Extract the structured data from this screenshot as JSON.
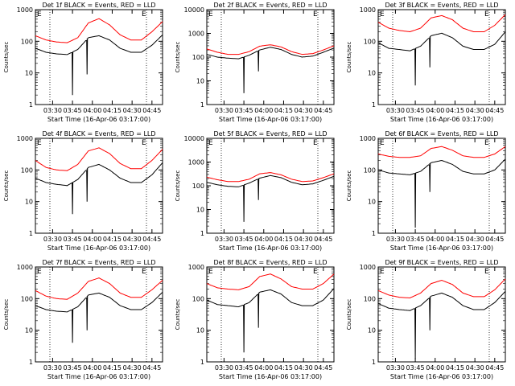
{
  "shared": {
    "ylabel": "Counts/sec",
    "xlabel": "Start Time (16-Apr-06 03:17:00)",
    "x_ticks": [
      "03:30",
      "03:45",
      "04:00",
      "04:15",
      "04:30",
      "04:45"
    ],
    "y_ticks": [
      "1",
      "10",
      "100",
      "1000"
    ],
    "corner_marks": [
      "E",
      "E"
    ],
    "colors": {
      "events": "#000000",
      "lld": "#ff0000",
      "axes": "#000000"
    }
  },
  "chart_data": [
    {
      "type": "line",
      "title": "Det 1f BLACK = Events, RED = LLD",
      "x": [
        "03:17",
        "03:25",
        "03:33",
        "03:41",
        "03:49",
        "03:57",
        "04:05",
        "04:13",
        "04:21",
        "04:29",
        "04:37",
        "04:45",
        "04:53"
      ],
      "series": [
        {
          "name": "LLD",
          "values": [
            150,
            110,
            95,
            90,
            130,
            380,
            520,
            330,
            160,
            110,
            110,
            200,
            420
          ]
        },
        {
          "name": "Events",
          "values": [
            60,
            45,
            40,
            38,
            55,
            130,
            150,
            110,
            60,
            45,
            45,
            75,
            160
          ]
        }
      ],
      "dips": [
        {
          "x": "03:45",
          "series": "Events",
          "value": 2
        },
        {
          "x": "03:56",
          "series": "Events",
          "value": 9
        }
      ],
      "ylim": [
        1,
        1000
      ],
      "yscale": "log",
      "grid": false
    },
    {
      "type": "line",
      "title": "Det 2f BLACK = Events, RED = LLD",
      "x": [
        "03:17",
        "03:25",
        "03:33",
        "03:41",
        "03:49",
        "03:57",
        "04:05",
        "04:13",
        "04:21",
        "04:29",
        "04:37",
        "04:45",
        "04:53"
      ],
      "series": [
        {
          "name": "LLD",
          "values": [
            220,
            160,
            130,
            130,
            170,
            290,
            330,
            270,
            170,
            130,
            140,
            200,
            300
          ]
        },
        {
          "name": "Events",
          "values": [
            130,
            100,
            90,
            85,
            120,
            200,
            260,
            210,
            130,
            100,
            110,
            160,
            240
          ]
        }
      ],
      "dips": [
        {
          "x": "03:45",
          "series": "Events",
          "value": 3
        },
        {
          "x": "03:56",
          "series": "Events",
          "value": 25
        }
      ],
      "ylim": [
        1,
        10000
      ],
      "yscale": "log",
      "grid": false
    },
    {
      "type": "line",
      "title": "Det 3f BLACK = Events, RED = LLD",
      "x": [
        "03:17",
        "03:25",
        "03:33",
        "03:41",
        "03:49",
        "03:57",
        "04:05",
        "04:13",
        "04:21",
        "04:29",
        "04:37",
        "04:45",
        "04:53"
      ],
      "series": [
        {
          "name": "LLD",
          "values": [
            400,
            260,
            220,
            200,
            260,
            550,
            650,
            480,
            260,
            200,
            200,
            320,
            700
          ]
        },
        {
          "name": "Events",
          "values": [
            90,
            60,
            55,
            50,
            70,
            150,
            180,
            130,
            70,
            55,
            55,
            80,
            200
          ]
        }
      ],
      "dips": [
        {
          "x": "03:45",
          "series": "Events",
          "value": 4
        },
        {
          "x": "03:56",
          "series": "Events",
          "value": 15
        }
      ],
      "ylim": [
        1,
        1000
      ],
      "yscale": "log",
      "grid": false
    },
    {
      "type": "line",
      "title": "Det 4f BLACK = Events, RED = LLD",
      "x": [
        "03:17",
        "03:25",
        "03:33",
        "03:41",
        "03:49",
        "03:57",
        "04:05",
        "04:13",
        "04:21",
        "04:29",
        "04:37",
        "04:45",
        "04:53"
      ],
      "series": [
        {
          "name": "LLD",
          "values": [
            200,
            120,
            100,
            95,
            150,
            400,
            500,
            330,
            160,
            110,
            110,
            200,
            450
          ]
        },
        {
          "name": "Events",
          "values": [
            55,
            40,
            35,
            32,
            50,
            120,
            150,
            100,
            55,
            40,
            40,
            70,
            170
          ]
        }
      ],
      "dips": [
        {
          "x": "03:45",
          "series": "Events",
          "value": 4
        },
        {
          "x": "03:56",
          "series": "Events",
          "value": 10
        }
      ],
      "ylim": [
        1,
        1000
      ],
      "yscale": "log",
      "grid": false
    },
    {
      "type": "line",
      "title": "Det 5f BLACK = Events, RED = LLD",
      "x": [
        "03:17",
        "03:25",
        "03:33",
        "03:41",
        "03:49",
        "03:57",
        "04:05",
        "04:13",
        "04:21",
        "04:29",
        "04:37",
        "04:45",
        "04:53"
      ],
      "series": [
        {
          "name": "LLD",
          "values": [
            230,
            180,
            150,
            150,
            190,
            320,
            360,
            290,
            190,
            150,
            160,
            220,
            320
          ]
        },
        {
          "name": "Events",
          "values": [
            140,
            110,
            95,
            90,
            130,
            210,
            270,
            220,
            140,
            110,
            120,
            170,
            250
          ]
        }
      ],
      "dips": [
        {
          "x": "03:45",
          "series": "Events",
          "value": 3
        },
        {
          "x": "03:56",
          "series": "Events",
          "value": 25
        }
      ],
      "ylim": [
        1,
        10000
      ],
      "yscale": "log",
      "grid": false
    },
    {
      "type": "line",
      "title": "Det 6f BLACK = Events, RED = LLD",
      "x": [
        "03:17",
        "03:25",
        "03:33",
        "03:41",
        "03:49",
        "03:57",
        "04:05",
        "04:13",
        "04:21",
        "04:29",
        "04:37",
        "04:45",
        "04:53"
      ],
      "series": [
        {
          "name": "LLD",
          "values": [
            320,
            270,
            250,
            250,
            280,
            480,
            550,
            420,
            280,
            250,
            250,
            320,
            550
          ]
        },
        {
          "name": "Events",
          "values": [
            100,
            80,
            75,
            70,
            90,
            170,
            200,
            150,
            90,
            75,
            75,
            100,
            220
          ]
        }
      ],
      "dips": [
        {
          "x": "03:45",
          "series": "Events",
          "value": 1.5
        },
        {
          "x": "03:56",
          "series": "Events",
          "value": 20
        }
      ],
      "ylim": [
        1,
        1000
      ],
      "yscale": "log",
      "grid": false
    },
    {
      "type": "line",
      "title": "Det 7f BLACK = Events, RED = LLD",
      "x": [
        "03:17",
        "03:25",
        "03:33",
        "03:41",
        "03:49",
        "03:57",
        "04:05",
        "04:13",
        "04:21",
        "04:29",
        "04:37",
        "04:45",
        "04:53"
      ],
      "series": [
        {
          "name": "LLD",
          "values": [
            180,
            120,
            100,
            95,
            150,
            350,
            450,
            300,
            150,
            110,
            110,
            190,
            380
          ]
        },
        {
          "name": "Events",
          "values": [
            60,
            45,
            40,
            38,
            55,
            130,
            150,
            110,
            60,
            45,
            45,
            75,
            160
          ]
        }
      ],
      "dips": [
        {
          "x": "03:45",
          "series": "Events",
          "value": 4
        },
        {
          "x": "03:56",
          "series": "Events",
          "value": 10
        }
      ],
      "ylim": [
        1,
        1000
      ],
      "yscale": "log",
      "grid": false
    },
    {
      "type": "line",
      "title": "Det 8f BLACK = Events, RED = LLD",
      "x": [
        "03:17",
        "03:25",
        "03:33",
        "03:41",
        "03:49",
        "03:57",
        "04:05",
        "04:13",
        "04:21",
        "04:29",
        "04:37",
        "04:45",
        "04:53"
      ],
      "series": [
        {
          "name": "LLD",
          "values": [
            300,
            220,
            200,
            190,
            240,
            500,
            600,
            420,
            240,
            200,
            200,
            300,
            600
          ]
        },
        {
          "name": "Events",
          "values": [
            90,
            65,
            60,
            55,
            75,
            160,
            190,
            140,
            75,
            60,
            60,
            90,
            210
          ]
        }
      ],
      "dips": [
        {
          "x": "03:45",
          "series": "Events",
          "value": 2
        },
        {
          "x": "03:56",
          "series": "Events",
          "value": 12
        }
      ],
      "ylim": [
        1,
        1000
      ],
      "yscale": "log",
      "grid": false
    },
    {
      "type": "line",
      "title": "Det 9f BLACK = Events, RED = LLD",
      "x": [
        "03:17",
        "03:25",
        "03:33",
        "03:41",
        "03:49",
        "03:57",
        "04:05",
        "04:13",
        "04:21",
        "04:29",
        "04:37",
        "04:45",
        "04:53"
      ],
      "series": [
        {
          "name": "LLD",
          "values": [
            180,
            130,
            110,
            105,
            150,
            300,
            380,
            280,
            150,
            115,
            115,
            190,
            420
          ]
        },
        {
          "name": "Events",
          "values": [
            70,
            50,
            45,
            42,
            60,
            120,
            150,
            110,
            60,
            45,
            45,
            75,
            170
          ]
        }
      ],
      "dips": [
        {
          "x": "03:45",
          "series": "Events",
          "value": 1.2
        },
        {
          "x": "03:56",
          "series": "Events",
          "value": 10
        }
      ],
      "ylim": [
        1,
        1000
      ],
      "yscale": "log",
      "grid": false
    }
  ]
}
